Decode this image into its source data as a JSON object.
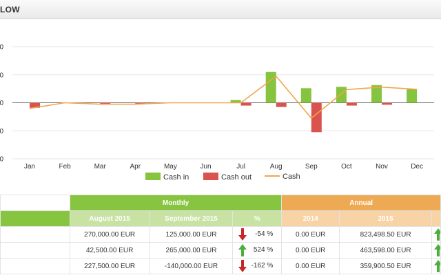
{
  "header": {
    "title": "LOW"
  },
  "chart_data": {
    "type": "bar",
    "categories": [
      "Jan",
      "Feb",
      "Mar",
      "Apr",
      "May",
      "Jun",
      "Jul",
      "Aug",
      "Sep",
      "Oct",
      "Nov",
      "Dec"
    ],
    "y_tick_labels": [
      "0",
      "0",
      "0",
      "0",
      "0"
    ],
    "ylim": [
      -200000,
      200000
    ],
    "series": [
      {
        "name": "Cash in",
        "type": "bar",
        "color": "#86c33f",
        "values": [
          0,
          0,
          0,
          0,
          0,
          0,
          10000,
          110000,
          52000,
          57000,
          63000,
          48000
        ]
      },
      {
        "name": "Cash out",
        "type": "bar",
        "color": "#d9534f",
        "values": [
          -18000,
          0,
          -5000,
          -4000,
          0,
          0,
          -10000,
          -15000,
          -105000,
          -10000,
          -7000,
          0
        ]
      },
      {
        "name": "Cash",
        "type": "line",
        "color": "#f3a44a",
        "values": [
          -20000,
          0,
          -5000,
          -5000,
          0,
          0,
          0,
          95000,
          -55000,
          47000,
          56000,
          48000
        ]
      }
    ],
    "grid": true,
    "legend": "bottom"
  },
  "table": {
    "groups": {
      "monthly": "Monthly",
      "annual": "Annual"
    },
    "columns": [
      "August 2015",
      "September 2015",
      "%",
      "2014",
      "2015"
    ],
    "rows": [
      {
        "aug": "270,000.00 EUR",
        "sep": "125,000.00 EUR",
        "pct": "-54 %",
        "trend": "down",
        "y2014": "0.00 EUR",
        "y2015": "823,498.50 EUR",
        "tail_trend": "up"
      },
      {
        "aug": "42,500.00 EUR",
        "sep": "265,000.00 EUR",
        "pct": "524 %",
        "trend": "up",
        "y2014": "0.00 EUR",
        "y2015": "463,598.00 EUR",
        "tail_trend": "up"
      },
      {
        "aug": "227,500.00 EUR",
        "sep": "-140,000.00 EUR",
        "pct": "-162 %",
        "trend": "down",
        "y2014": "0.00 EUR",
        "y2015": "359,900.50 EUR",
        "tail_trend": "up"
      }
    ],
    "colors": {
      "up": "#4caf3d",
      "down": "#c62828"
    }
  }
}
